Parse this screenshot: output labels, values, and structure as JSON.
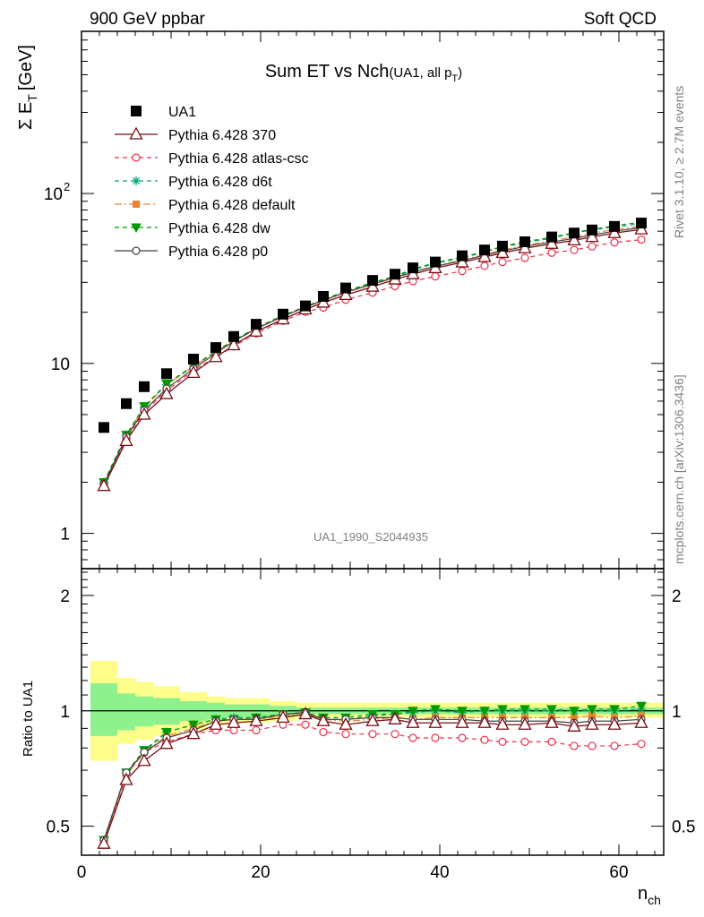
{
  "header": {
    "left": "900 GeV ppbar",
    "right": "Soft QCD"
  },
  "side": {
    "rivet": "Rivet 3.1.10, ≥ 2.7M events",
    "mcplots": "mcplots.cern.ch [arXiv:1306.3436]"
  },
  "chart_data": [
    {
      "type": "scatter",
      "title": "Sum ET vs Nch",
      "title_sub": "(UA1, all p",
      "title_sub_index": "T",
      "title_sub_close": ")",
      "ylabel": "Σ E",
      "ylabel_sub": "T",
      "ylabel_unit": "[GeV]",
      "yscale": "log",
      "ylim": [
        0.62,
        900
      ],
      "xlim": [
        0,
        65
      ],
      "ytick_labels": [
        "1",
        "10",
        "10",
        "2"
      ],
      "ytick_values": [
        1,
        10,
        100
      ],
      "watermark": "UA1_1990_S2044935",
      "legend_position": "top-left",
      "x": [
        2.5,
        5,
        7,
        9.5,
        12.5,
        15,
        17,
        19.5,
        22.5,
        25,
        27,
        29.5,
        32.5,
        35,
        37,
        39.5,
        42.5,
        45,
        47,
        49.5,
        52.5,
        55,
        57,
        59.5,
        62.5
      ],
      "data": {
        "name": "UA1",
        "values": [
          4.2,
          5.8,
          7.3,
          8.7,
          10.6,
          12.4,
          14.4,
          17.0,
          19.5,
          21.8,
          24.8,
          27.8,
          30.8,
          33.5,
          36.5,
          39.5,
          43.0,
          46.5,
          49.0,
          52.0,
          55.5,
          58.5,
          61.0,
          64.0,
          67.0
        ],
        "errors_up": [
          0,
          0,
          0,
          0,
          0,
          0,
          0,
          0,
          0,
          0,
          0,
          0,
          0,
          0,
          0,
          0,
          0,
          0,
          0,
          0,
          0,
          0,
          0,
          0,
          0
        ]
      },
      "series": [
        {
          "name": "Pythia 6.428 370",
          "color": "#7b0c12",
          "values": [
            1.9,
            3.5,
            5.0,
            6.6,
            8.8,
            10.9,
            12.8,
            15.4,
            18.2,
            20.8,
            22.8,
            25.3,
            28.3,
            31.2,
            33.5,
            36.4,
            39.3,
            42.3,
            44.7,
            47.6,
            50.6,
            53.0,
            55.5,
            58.5,
            61.5
          ]
        },
        {
          "name": "Pythia 6.428 atlas-csc",
          "color": "#e8304a",
          "values": [
            1.9,
            3.6,
            5.2,
            6.9,
            9.1,
            10.9,
            12.6,
            15.0,
            17.8,
            20.1,
            21.3,
            23.7,
            26.1,
            28.5,
            30.5,
            32.5,
            35.0,
            37.5,
            39.5,
            41.8,
            44.8,
            46.5,
            48.8,
            51.5,
            53.5
          ]
        },
        {
          "name": "Pythia 6.428 d6t",
          "color": "#00a878",
          "values": [
            2.0,
            3.8,
            5.5,
            7.5,
            9.6,
            11.7,
            13.5,
            16.0,
            19.1,
            21.4,
            23.6,
            26.4,
            29.6,
            32.1,
            35.5,
            38.8,
            41.8,
            45.2,
            48.4,
            51.4,
            54.5,
            58.5,
            61.0,
            63.5,
            66.5
          ]
        },
        {
          "name": "Pythia 6.428 default",
          "color": "#f08030",
          "values": [
            1.9,
            3.8,
            5.5,
            7.5,
            9.6,
            11.7,
            13.6,
            16.1,
            19.0,
            21.5,
            23.4,
            26.1,
            29.2,
            31.8,
            34.5,
            37.6,
            40.5,
            43.8,
            46.5,
            49.6,
            52.6,
            55.7,
            58.3,
            61.5,
            64.0
          ]
        },
        {
          "name": "Pythia 6.428 dw",
          "color": "#009a00",
          "values": [
            2.0,
            3.8,
            5.6,
            7.6,
            9.7,
            11.8,
            13.7,
            16.2,
            19.2,
            21.6,
            23.8,
            26.6,
            30.0,
            32.6,
            35.9,
            39.2,
            42.2,
            45.6,
            48.9,
            52.0,
            55.2,
            58.8,
            61.5,
            64.5,
            68.0
          ]
        },
        {
          "name": "Pythia 6.428 p0",
          "color": "#404040",
          "values": [
            1.95,
            3.7,
            5.3,
            7.1,
            9.3,
            11.5,
            13.5,
            16.0,
            18.9,
            21.5,
            23.5,
            26.3,
            29.3,
            32.1,
            34.4,
            37.3,
            40.2,
            43.3,
            45.8,
            48.8,
            51.8,
            54.4,
            57.0,
            60.0,
            63.0
          ]
        }
      ]
    },
    {
      "type": "line",
      "xlabel": "n",
      "xlabel_sub": "ch",
      "ylabel": "Ratio to UA1",
      "yscale": "log",
      "ylim": [
        0.42,
        2.35
      ],
      "xlim": [
        0,
        65
      ],
      "xtick_labels": [
        "0",
        "20",
        "40",
        "60"
      ],
      "xtick_values": [
        0,
        20,
        40,
        60
      ],
      "ytick_labels": [
        "0.5",
        "1",
        "2"
      ],
      "ytick_values": [
        0.5,
        1,
        2
      ],
      "x": [
        2.5,
        5,
        7,
        9.5,
        12.5,
        15,
        17,
        19.5,
        22.5,
        25,
        27,
        29.5,
        32.5,
        35,
        37,
        39.5,
        42.5,
        45,
        47,
        49.5,
        52.5,
        55,
        57,
        59.5,
        62.5
      ],
      "uncertainty": {
        "bin_edges": [
          1,
          4,
          6,
          8,
          11,
          14,
          16,
          18,
          21,
          24,
          26,
          28,
          31,
          34,
          36,
          38,
          41,
          44,
          46,
          48,
          51,
          54,
          56,
          58,
          61,
          65
        ],
        "outer_low": [
          0.74,
          0.82,
          0.84,
          0.86,
          0.89,
          0.92,
          0.93,
          0.93,
          0.94,
          0.96,
          0.96,
          0.96,
          0.96,
          0.96,
          0.96,
          0.96,
          0.96,
          0.96,
          0.96,
          0.96,
          0.96,
          0.96,
          0.96,
          0.96,
          0.96
        ],
        "outer_high": [
          1.35,
          1.22,
          1.19,
          1.16,
          1.12,
          1.09,
          1.08,
          1.08,
          1.06,
          1.05,
          1.05,
          1.05,
          1.05,
          1.05,
          1.05,
          1.05,
          1.05,
          1.05,
          1.05,
          1.05,
          1.05,
          1.05,
          1.05,
          1.05,
          1.05
        ],
        "inner_low": [
          0.86,
          0.89,
          0.91,
          0.92,
          0.94,
          0.95,
          0.96,
          0.96,
          0.97,
          0.98,
          0.98,
          0.98,
          0.98,
          0.98,
          0.98,
          0.98,
          0.98,
          0.98,
          0.98,
          0.98,
          0.98,
          0.98,
          0.98,
          0.98,
          0.98
        ],
        "inner_high": [
          1.18,
          1.11,
          1.09,
          1.08,
          1.06,
          1.05,
          1.04,
          1.04,
          1.03,
          1.02,
          1.02,
          1.02,
          1.02,
          1.02,
          1.02,
          1.02,
          1.02,
          1.02,
          1.02,
          1.02,
          1.02,
          1.02,
          1.02,
          1.02,
          1.02
        ]
      },
      "series": [
        {
          "name": "Pythia 6.428 370",
          "values": [
            0.45,
            0.66,
            0.74,
            0.82,
            0.87,
            0.92,
            0.93,
            0.94,
            0.96,
            0.98,
            0.94,
            0.92,
            0.94,
            0.95,
            0.93,
            0.93,
            0.93,
            0.93,
            0.92,
            0.92,
            0.93,
            0.91,
            0.92,
            0.92,
            0.93
          ]
        },
        {
          "name": "Pythia 6.428 atlas-csc",
          "values": [
            0.45,
            0.68,
            0.78,
            0.83,
            0.87,
            0.89,
            0.89,
            0.89,
            0.92,
            0.92,
            0.88,
            0.87,
            0.87,
            0.87,
            0.85,
            0.85,
            0.85,
            0.84,
            0.83,
            0.83,
            0.83,
            0.81,
            0.81,
            0.81,
            0.82
          ]
        },
        {
          "name": "Pythia 6.428 d6t",
          "values": [
            0.46,
            0.69,
            0.78,
            0.88,
            0.92,
            0.95,
            0.96,
            0.96,
            0.98,
            0.99,
            0.95,
            0.95,
            0.97,
            0.98,
            0.99,
            1.0,
            0.99,
            1.0,
            1.0,
            1.0,
            1.0,
            1.0,
            1.0,
            1.0,
            1.01
          ]
        },
        {
          "name": "Pythia 6.428 default",
          "values": [
            0.46,
            0.68,
            0.78,
            0.86,
            0.9,
            0.94,
            0.95,
            0.95,
            0.97,
            0.98,
            0.95,
            0.94,
            0.95,
            0.96,
            0.95,
            0.96,
            0.96,
            0.96,
            0.96,
            0.96,
            0.96,
            0.96,
            0.97,
            0.96,
            0.97
          ]
        },
        {
          "name": "Pythia 6.428 dw",
          "values": [
            0.46,
            0.69,
            0.79,
            0.88,
            0.92,
            0.95,
            0.95,
            0.96,
            0.98,
            0.99,
            0.96,
            0.96,
            0.98,
            0.98,
            1.0,
            1.01,
            1.0,
            1.0,
            1.01,
            1.01,
            1.01,
            1.0,
            1.01,
            1.01,
            1.03
          ]
        },
        {
          "name": "Pythia 6.428 p0",
          "values": [
            0.46,
            0.69,
            0.78,
            0.85,
            0.89,
            0.94,
            0.95,
            0.95,
            0.98,
            0.99,
            0.95,
            0.95,
            0.96,
            0.96,
            0.95,
            0.95,
            0.95,
            0.94,
            0.94,
            0.94,
            0.94,
            0.93,
            0.94,
            0.94,
            0.95
          ]
        }
      ]
    }
  ]
}
